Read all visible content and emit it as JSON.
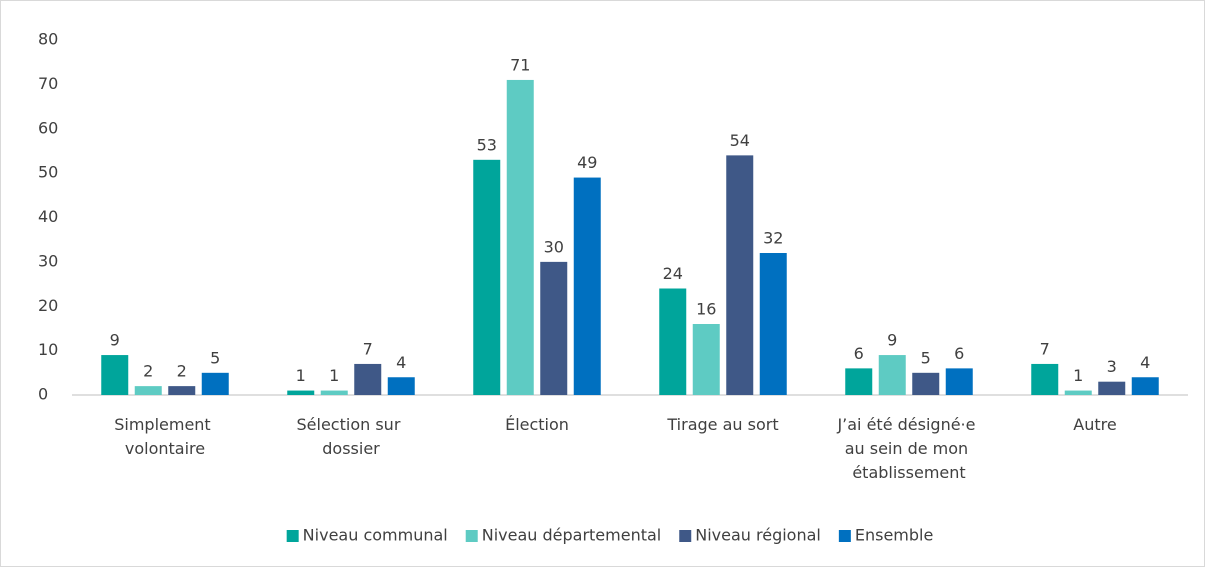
{
  "chart_data": {
    "type": "bar",
    "categories": [
      "Simplement volontaire",
      "Sélection sur dossier",
      "Élection",
      "Tirage au sort",
      "J’ai été désigné·e au sein de mon établissement",
      "Autre"
    ],
    "series": [
      {
        "name": "Niveau communal",
        "color": "#00a59b",
        "values": [
          9,
          1,
          53,
          24,
          6,
          7
        ]
      },
      {
        "name": "Niveau départemental",
        "color": "#5ecbc3",
        "values": [
          2,
          1,
          71,
          16,
          9,
          1
        ]
      },
      {
        "name": "Niveau régional",
        "color": "#3f5887",
        "values": [
          2,
          7,
          30,
          54,
          5,
          3
        ]
      },
      {
        "name": "Ensemble",
        "color": "#0070c0",
        "values": [
          5,
          4,
          49,
          32,
          6,
          4
        ]
      }
    ],
    "ylim": [
      0,
      80
    ],
    "yticks": [
      0,
      10,
      20,
      30,
      40,
      50,
      60,
      70,
      80
    ],
    "legend": "bottom"
  }
}
